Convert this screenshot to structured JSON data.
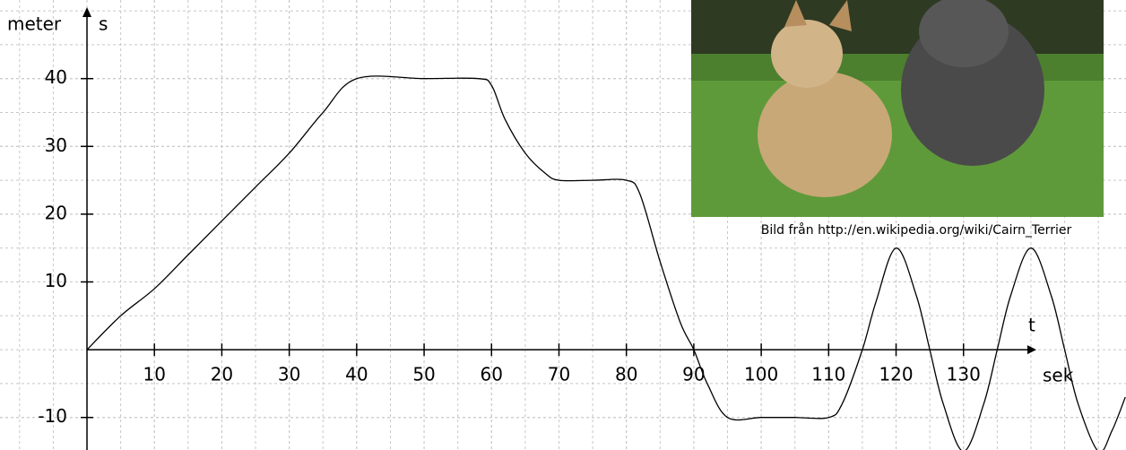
{
  "chart_data": {
    "type": "line",
    "y_unit": "meter",
    "y_label": "s",
    "x_label": "t",
    "x_unit": "sek",
    "x": [
      0,
      5,
      10,
      15,
      20,
      25,
      30,
      35,
      40,
      50,
      58,
      60,
      62,
      65,
      68,
      70,
      75,
      80,
      82,
      85,
      88,
      90,
      92,
      95,
      100,
      105,
      110,
      112,
      115,
      117,
      120,
      123,
      125,
      127,
      130,
      133,
      135,
      137,
      140,
      143,
      145,
      147,
      150,
      152,
      154
    ],
    "series": [
      {
        "color": "#000000",
        "values": [
          0,
          5,
          9,
          14,
          19,
          24,
          29,
          35,
          40,
          40,
          40,
          39,
          34,
          29,
          26,
          25,
          25,
          25,
          23,
          13,
          4,
          0,
          -5,
          -10,
          -10,
          -10,
          -10,
          -8,
          0,
          7,
          15,
          8,
          0,
          -8,
          -15,
          -8,
          0,
          8,
          15,
          8,
          0,
          -8,
          -15,
          -12,
          -7
        ]
      }
    ],
    "xlim": [
      -12.9,
      154.1
    ],
    "ylim": [
      -14.8,
      51.6
    ],
    "xticks": [
      10,
      20,
      30,
      40,
      50,
      60,
      70,
      80,
      90,
      100,
      110,
      120,
      130
    ],
    "yticks": [
      -10,
      10,
      20,
      30,
      40
    ],
    "grid": true
  },
  "photo": {
    "caption": "Bild från http://en.wikipedia.org/wiki/Cairn_Terrier"
  }
}
